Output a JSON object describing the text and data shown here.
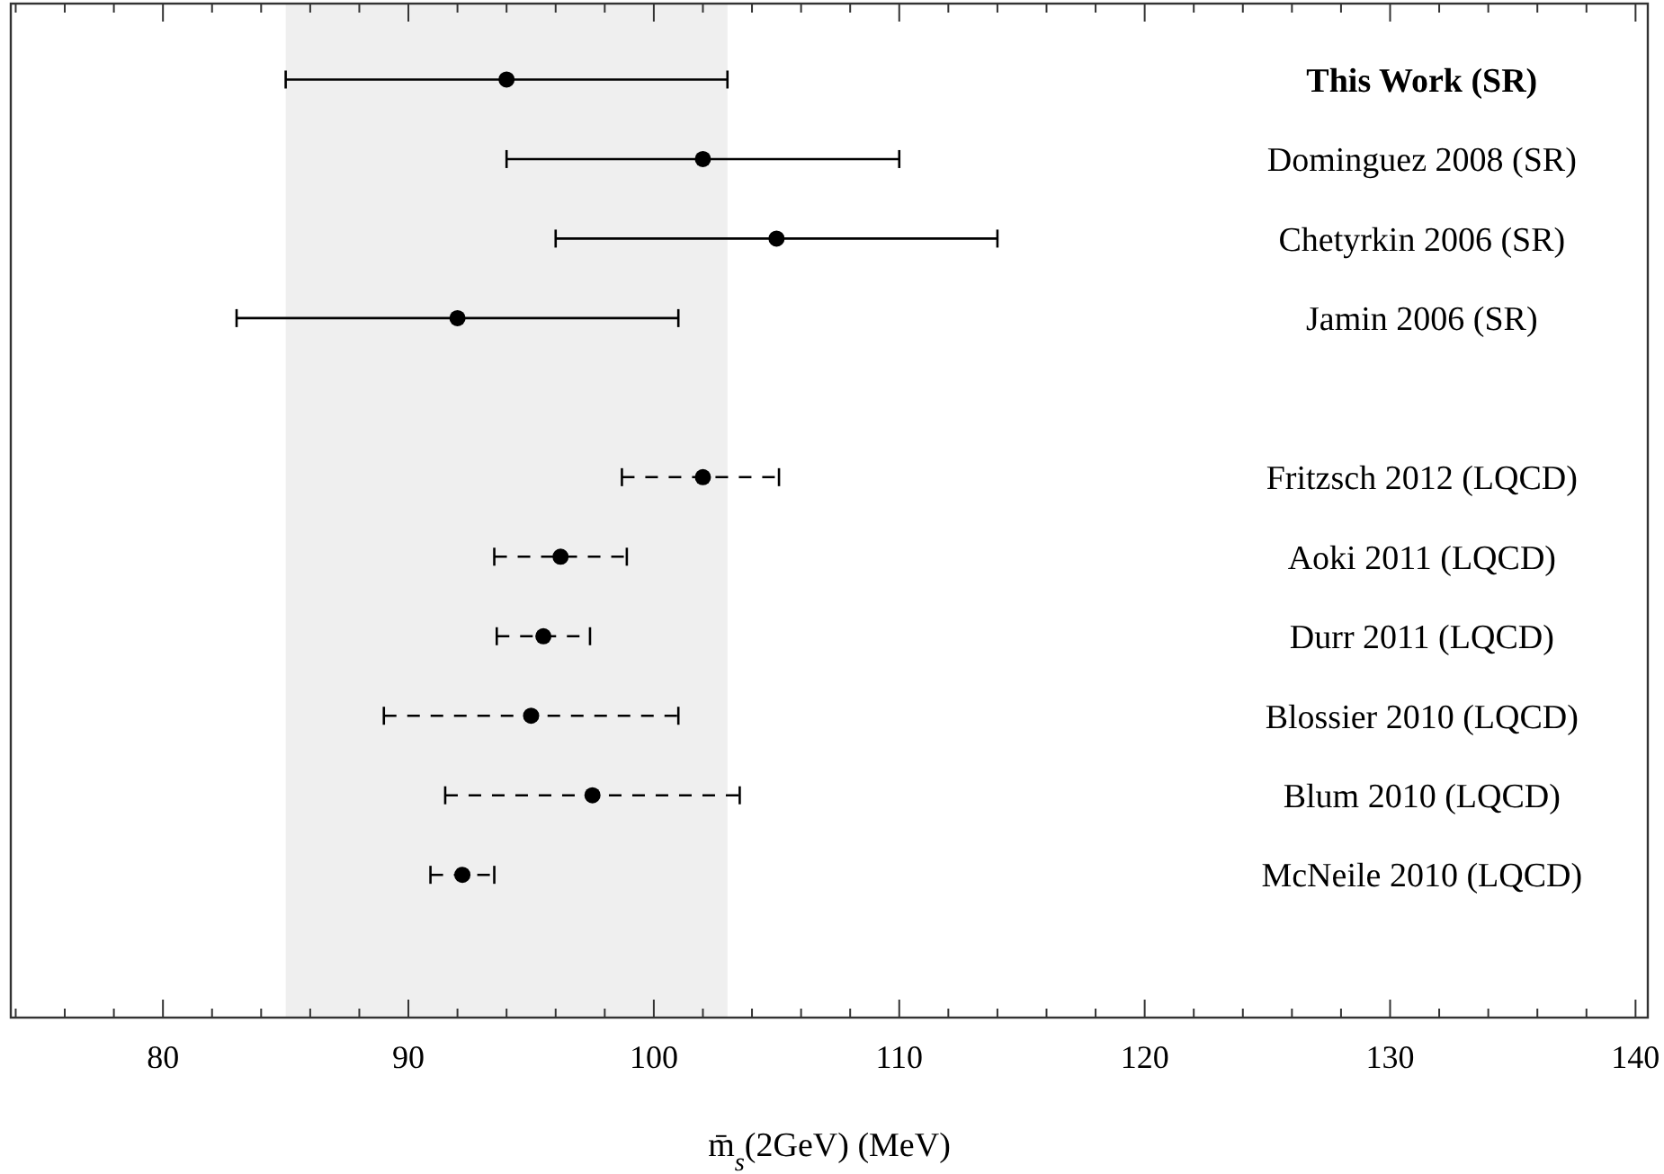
{
  "chart_data": {
    "type": "scatter",
    "orientation": "horizontal",
    "xlabel": "m̄$_{s}$(2GeV) (MeV)",
    "categories": [
      "This Work (SR)",
      "Dominguez 2008 (SR)",
      "Chetyrkin 2006 (SR)",
      "Jamin 2006 (SR)",
      null,
      "Fritzsch 2012 (LQCD)",
      "Aoki 2011 (LQCD)",
      "Durr 2011 (LQCD)",
      "Blossier 2010 (LQCD)",
      "Blum 2010 (LQCD)",
      "McNeile 2010 (LQCD)"
    ],
    "series": [
      {
        "color": "#000000",
        "line_style": "solid",
        "values": [
          94,
          102,
          105,
          92,
          null,
          null,
          null,
          null,
          null,
          null,
          null
        ],
        "errors": [
          9,
          8,
          9,
          9,
          null,
          null,
          null,
          null,
          null,
          null,
          null
        ]
      },
      {
        "color": "#000000",
        "line_style": "dashed",
        "values": [
          null,
          null,
          null,
          null,
          null,
          102,
          96.2,
          95.5,
          95,
          97.5,
          92.2
        ],
        "errors": [
          null,
          null,
          null,
          null,
          null,
          [
            98.7,
            105.1
          ],
          2.7,
          1.9,
          6,
          6,
          1.3
        ]
      }
    ],
    "marker": "circle",
    "xlim": [
      73.8,
      140.5
    ],
    "xticks": [
      {
        "value": 74,
        "label": null
      },
      {
        "value": 76,
        "label": null
      },
      {
        "value": 78,
        "label": null
      },
      80,
      {
        "value": 82,
        "label": null
      },
      {
        "value": 84,
        "label": null
      },
      {
        "value": 86,
        "label": null
      },
      {
        "value": 88,
        "label": null
      },
      90,
      {
        "value": 92,
        "label": null
      },
      {
        "value": 94,
        "label": null
      },
      {
        "value": 96,
        "label": null
      },
      {
        "value": 98,
        "label": null
      },
      100,
      {
        "value": 102,
        "label": null
      },
      {
        "value": 104,
        "label": null
      },
      {
        "value": 106,
        "label": null
      },
      {
        "value": 108,
        "label": null
      },
      110,
      {
        "value": 112,
        "label": null
      },
      {
        "value": 114,
        "label": null
      },
      {
        "value": 116,
        "label": null
      },
      {
        "value": 118,
        "label": null
      },
      120,
      {
        "value": 122,
        "label": null
      },
      {
        "value": 124,
        "label": null
      },
      {
        "value": 126,
        "label": null
      },
      {
        "value": 128,
        "label": null
      },
      130,
      {
        "value": 132,
        "label": null
      },
      {
        "value": 134,
        "label": null
      },
      {
        "value": 136,
        "label": null
      },
      {
        "value": 138,
        "label": null
      },
      140
    ],
    "bands": [
      {
        "axis": "x",
        "from": 85,
        "to": 103,
        "color": "#efefef"
      }
    ],
    "grid": false
  }
}
